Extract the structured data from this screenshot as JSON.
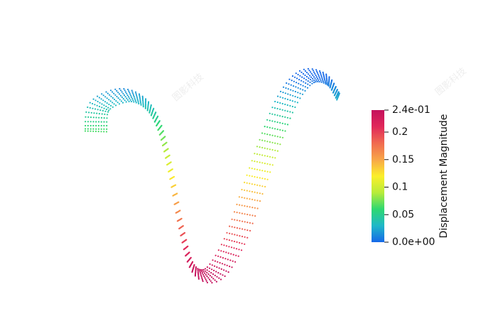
{
  "chart_data": {
    "type": "point-cloud",
    "colorbar": {
      "title": "Displacement Magnitude",
      "clim": [
        0,
        0.24
      ],
      "ticks": [
        {
          "value": 0,
          "label": "0.0e+00"
        },
        0.05,
        0.1,
        0.15,
        0.2,
        {
          "value": 0.24,
          "label": "2.4e-01"
        }
      ],
      "colormap": [
        "#1668e8",
        "#1fb8c8",
        "#2ed870",
        "#b8ec3a",
        "#fbef2a",
        "#f8a648",
        "#f06a50",
        "#e0285a",
        "#c4105c"
      ]
    },
    "watermark": "图影科技"
  }
}
